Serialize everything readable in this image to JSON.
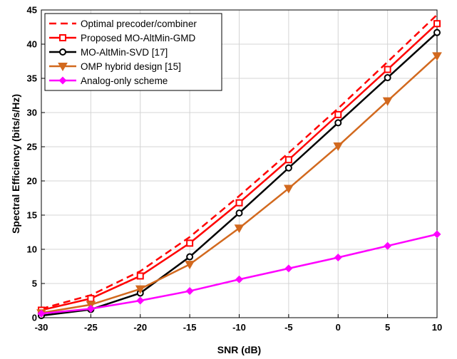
{
  "chart_data": {
    "type": "line",
    "title": "",
    "xlabel": "SNR (dB)",
    "ylabel": "Spectral Efficiency (bits/s/Hz)",
    "xlim": [
      -30,
      10
    ],
    "ylim": [
      0,
      45
    ],
    "xticks": [
      -30,
      -25,
      -20,
      -15,
      -10,
      -5,
      0,
      5,
      10
    ],
    "yticks": [
      0,
      5,
      10,
      15,
      20,
      25,
      30,
      35,
      40,
      45
    ],
    "grid": true,
    "legend_position": "top-left",
    "x": [
      -30,
      -25,
      -20,
      -15,
      -10,
      -5,
      0,
      5,
      10
    ],
    "series": [
      {
        "name": "Optimal  precoder/combiner",
        "color": "#ff0000",
        "style": "dashed",
        "marker": "none",
        "values": [
          1.3,
          3.3,
          6.8,
          11.8,
          17.8,
          24.1,
          30.6,
          37.4,
          44.3
        ]
      },
      {
        "name": "Proposed MO-AltMin-GMD",
        "color": "#ff0000",
        "style": "solid",
        "marker": "square",
        "values": [
          1.1,
          2.8,
          6.1,
          10.9,
          16.8,
          23.1,
          29.7,
          36.3,
          43.0
        ]
      },
      {
        "name": "MO-AltMin-SVD [17]",
        "color": "#000000",
        "style": "solid",
        "marker": "circle",
        "values": [
          0.3,
          1.2,
          3.6,
          8.9,
          15.3,
          21.9,
          28.5,
          35.1,
          41.7
        ]
      },
      {
        "name": "OMP hybrid design [15]",
        "color": "#d2691e",
        "style": "solid",
        "marker": "triangle-down",
        "values": [
          0.7,
          1.9,
          4.2,
          7.8,
          13.1,
          18.9,
          25.1,
          31.7,
          38.3
        ]
      },
      {
        "name": "Analog-only scheme",
        "color": "#ff00ff",
        "style": "solid",
        "marker": "diamond",
        "values": [
          0.6,
          1.3,
          2.5,
          3.9,
          5.6,
          7.2,
          8.8,
          10.5,
          12.2
        ]
      }
    ]
  }
}
